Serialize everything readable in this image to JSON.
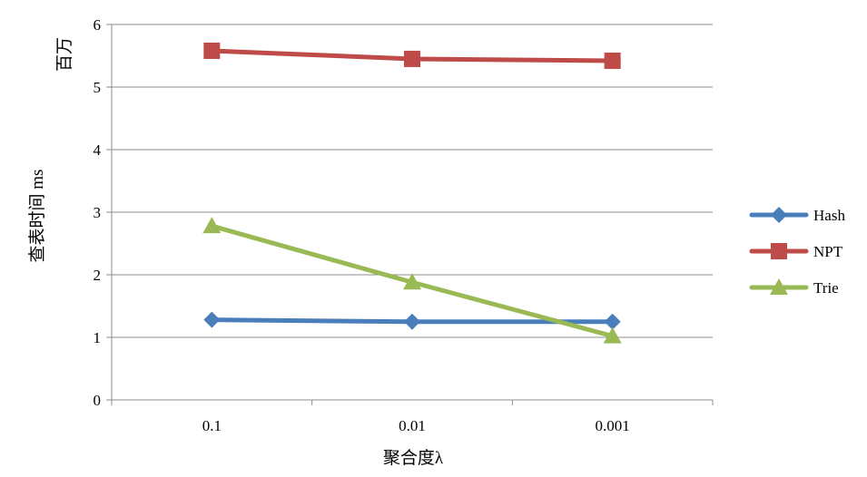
{
  "chart_data": {
    "type": "line",
    "title": "",
    "xlabel": "聚合度λ",
    "ylabel": "查表时间 ms",
    "yunit_label": "百万",
    "categories": [
      "0.1",
      "0.01",
      "0.001"
    ],
    "ylim": [
      0,
      6
    ],
    "yticks": [
      0,
      1,
      2,
      3,
      4,
      5,
      6
    ],
    "grid": true,
    "legend_position": "right",
    "series": [
      {
        "name": "Hash",
        "values": [
          1.28,
          1.25,
          1.25
        ],
        "color": "#4a7ebb",
        "marker": "diamond"
      },
      {
        "name": "NPT",
        "values": [
          5.58,
          5.45,
          5.42
        ],
        "color": "#be4b48",
        "marker": "square"
      },
      {
        "name": "Trie",
        "values": [
          2.78,
          1.88,
          1.02
        ],
        "color": "#98b954",
        "marker": "triangle"
      }
    ]
  }
}
